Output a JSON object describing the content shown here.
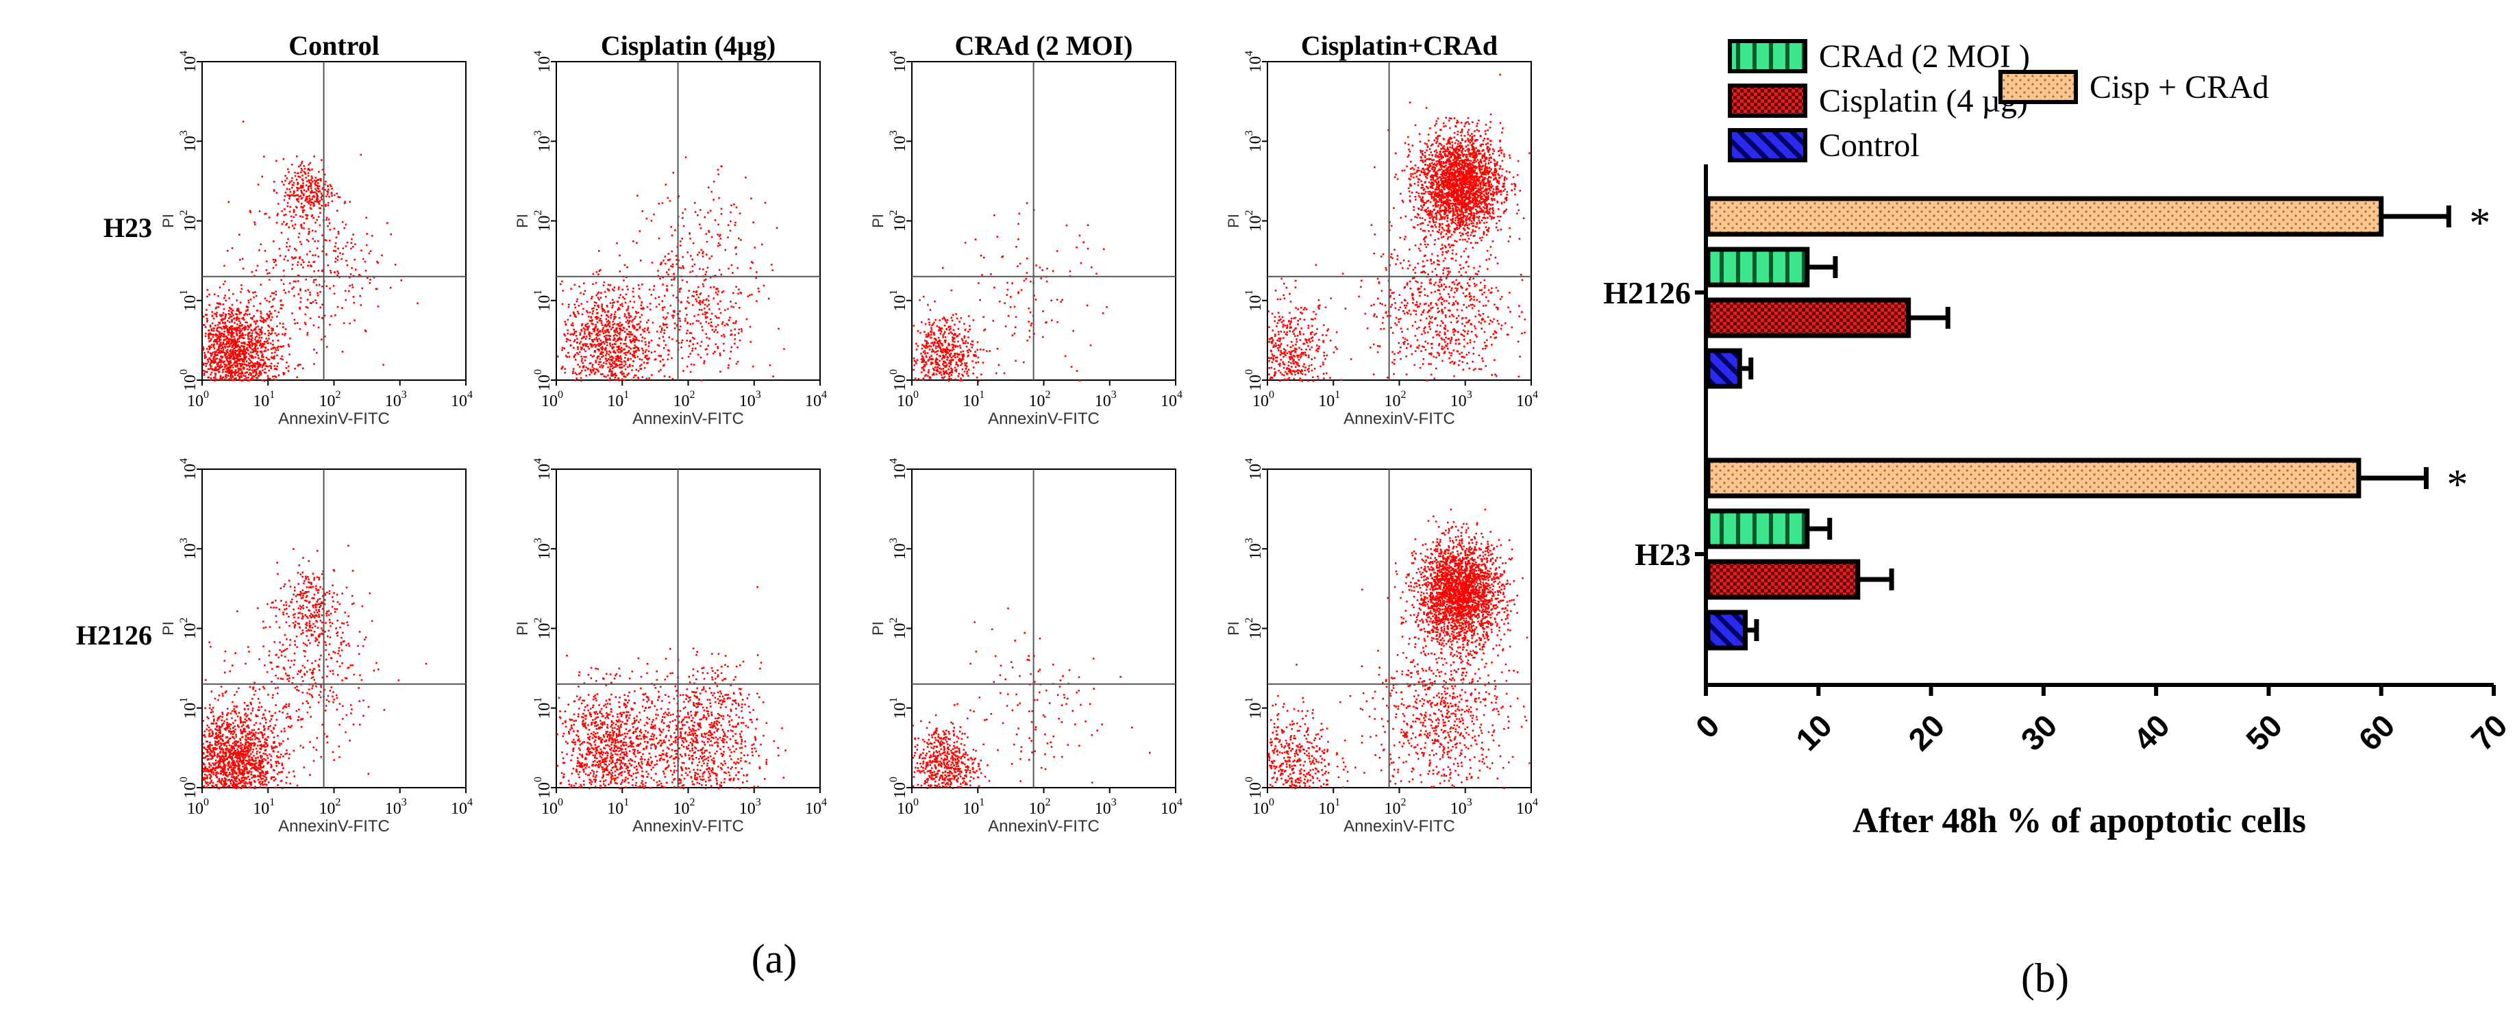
{
  "chart_data": [
    {
      "type": "scatter",
      "subtype": "flow-cytometry-dot-plot-grid",
      "panel_label": "(a)",
      "columns": [
        "Control",
        "Cisplatin (4µg)",
        "CRAd (2 MOI)",
        "Cisplatin+CRAd"
      ],
      "rows": [
        "H23",
        "H2126"
      ],
      "xlabel": "AnnexinV-FITC",
      "ylabel": "PI",
      "axis_scale": "log",
      "xlim": [
        1,
        10000
      ],
      "ylim": [
        1,
        10000
      ],
      "x_ticks": [
        "10",
        "10",
        "10",
        "10",
        "10"
      ],
      "x_tick_exponents": [
        "0",
        "1",
        "2",
        "3",
        "4"
      ],
      "y_ticks": [
        "10",
        "10",
        "10",
        "10",
        "10"
      ],
      "y_tick_exponents": [
        "0",
        "1",
        "2",
        "3",
        "4"
      ],
      "gate_x": 70,
      "gate_y": 20,
      "point_color": "#ff0000",
      "populations": [
        [
          [
            {
              "x": 3,
              "y": 2,
              "spread": 0.35,
              "n": 1600
            },
            {
              "x": 40,
              "y": 250,
              "spread": 0.2,
              "n": 260
            },
            {
              "x": 40,
              "y": 30,
              "spread": 0.5,
              "n": 350
            }
          ],
          [
            {
              "x": 6,
              "y": 3,
              "spread": 0.35,
              "n": 900
            },
            {
              "x": 120,
              "y": 6,
              "spread": 0.5,
              "n": 380
            },
            {
              "x": 150,
              "y": 50,
              "spread": 0.45,
              "n": 130
            }
          ],
          [
            {
              "x": 3,
              "y": 2,
              "spread": 0.25,
              "n": 550
            },
            {
              "x": 60,
              "y": 10,
              "spread": 0.55,
              "n": 120
            }
          ],
          [
            {
              "x": 2,
              "y": 2,
              "spread": 0.35,
              "n": 550
            },
            {
              "x": 800,
              "y": 300,
              "spread": 0.32,
              "n": 2400
            },
            {
              "x": 400,
              "y": 8,
              "spread": 0.5,
              "n": 700
            }
          ]
        ],
        [
          [
            {
              "x": 3,
              "y": 2,
              "spread": 0.35,
              "n": 1600
            },
            {
              "x": 45,
              "y": 200,
              "spread": 0.25,
              "n": 240
            },
            {
              "x": 40,
              "y": 25,
              "spread": 0.5,
              "n": 350
            }
          ],
          [
            {
              "x": 6,
              "y": 3,
              "spread": 0.4,
              "n": 1000
            },
            {
              "x": 150,
              "y": 4,
              "spread": 0.45,
              "n": 900
            }
          ],
          [
            {
              "x": 3,
              "y": 2,
              "spread": 0.25,
              "n": 550
            },
            {
              "x": 60,
              "y": 10,
              "spread": 0.55,
              "n": 120
            }
          ],
          [
            {
              "x": 2,
              "y": 2,
              "spread": 0.35,
              "n": 550
            },
            {
              "x": 800,
              "y": 280,
              "spread": 0.32,
              "n": 2400
            },
            {
              "x": 400,
              "y": 8,
              "spread": 0.5,
              "n": 700
            }
          ]
        ]
      ]
    },
    {
      "type": "bar",
      "orientation": "horizontal",
      "panel_label": "(b)",
      "categories": [
        "H2126",
        "H23"
      ],
      "series": [
        {
          "name": "Cisp + CRAd",
          "color": "#fcc58f",
          "pattern": "dots",
          "values": [
            60,
            58
          ],
          "errors": [
            6,
            6
          ],
          "significance": [
            "*",
            "*"
          ]
        },
        {
          "name": "CRAd (2 MOI )",
          "color": "#3be68c",
          "pattern": "vertical-stripes",
          "values": [
            9,
            9
          ],
          "errors": [
            2.5,
            2
          ]
        },
        {
          "name": "Cisplatin (4 µg)",
          "color": "#d51a1a",
          "pattern": "checker",
          "values": [
            18,
            13.5
          ],
          "errors": [
            3.5,
            3
          ]
        },
        {
          "name": "Control",
          "color": "#2b2bf0",
          "pattern": "diagonal-stripes",
          "values": [
            3,
            3.5
          ],
          "errors": [
            1,
            1
          ]
        }
      ],
      "legend": [
        "CRAd (2 MOI )",
        "Cisplatin (4 µg)",
        "Control",
        "Cisp + CRAd"
      ],
      "xlabel": "After 48h % of apoptotic cells",
      "xlim": [
        0,
        70
      ],
      "x_ticks": [
        "0",
        "10",
        "20",
        "30",
        "40",
        "50",
        "60",
        "70"
      ]
    }
  ]
}
